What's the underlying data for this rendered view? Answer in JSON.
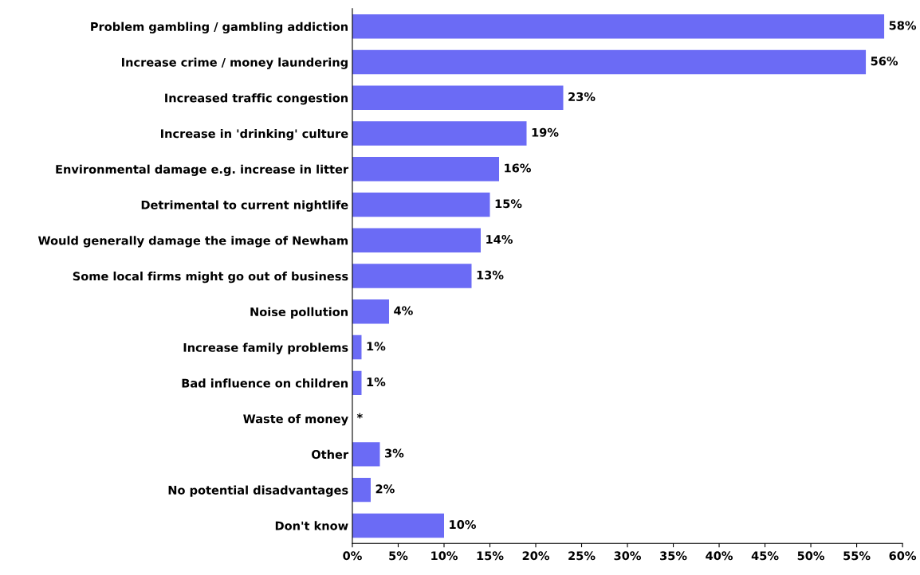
{
  "chart_data": {
    "type": "bar",
    "orientation": "horizontal",
    "categories": [
      "Problem gambling / gambling addiction",
      "Increase crime / money laundering",
      "Increased traffic congestion",
      "Increase in 'drinking' culture",
      "Environmental damage e.g. increase in litter",
      "Detrimental to current nightlife",
      "Would generally damage the image of Newham",
      "Some local firms might go out of business",
      "Noise pollution",
      "Increase family problems",
      "Bad influence on children",
      "Waste of money",
      "Other",
      "No potential disadvantages",
      "Don't know"
    ],
    "values": [
      58,
      56,
      23,
      19,
      16,
      15,
      14,
      13,
      4,
      1,
      1,
      0,
      3,
      2,
      10
    ],
    "value_labels": [
      "58%",
      "56%",
      "23%",
      "19%",
      "16%",
      "15%",
      "14%",
      "13%",
      "4%",
      "1%",
      "1%",
      "*",
      "3%",
      "2%",
      "10%"
    ],
    "color": "#6b6bf5",
    "xlim": [
      0,
      60
    ],
    "xticks": [
      {
        "value": 0,
        "label": "0%"
      },
      {
        "value": 5,
        "label": "5%"
      },
      {
        "value": 10,
        "label": "10%"
      },
      {
        "value": 15,
        "label": "15%"
      },
      {
        "value": 20,
        "label": "20%"
      },
      {
        "value": 25,
        "label": "25%"
      },
      {
        "value": 30,
        "label": "30%"
      },
      {
        "value": 35,
        "label": "35%"
      },
      {
        "value": 40,
        "label": "40%"
      },
      {
        "value": 45,
        "label": "45%"
      },
      {
        "value": 50,
        "label": "50%"
      },
      {
        "value": 55,
        "label": "55%"
      },
      {
        "value": 60,
        "label": "60%"
      }
    ],
    "grid": false,
    "legend": false
  }
}
